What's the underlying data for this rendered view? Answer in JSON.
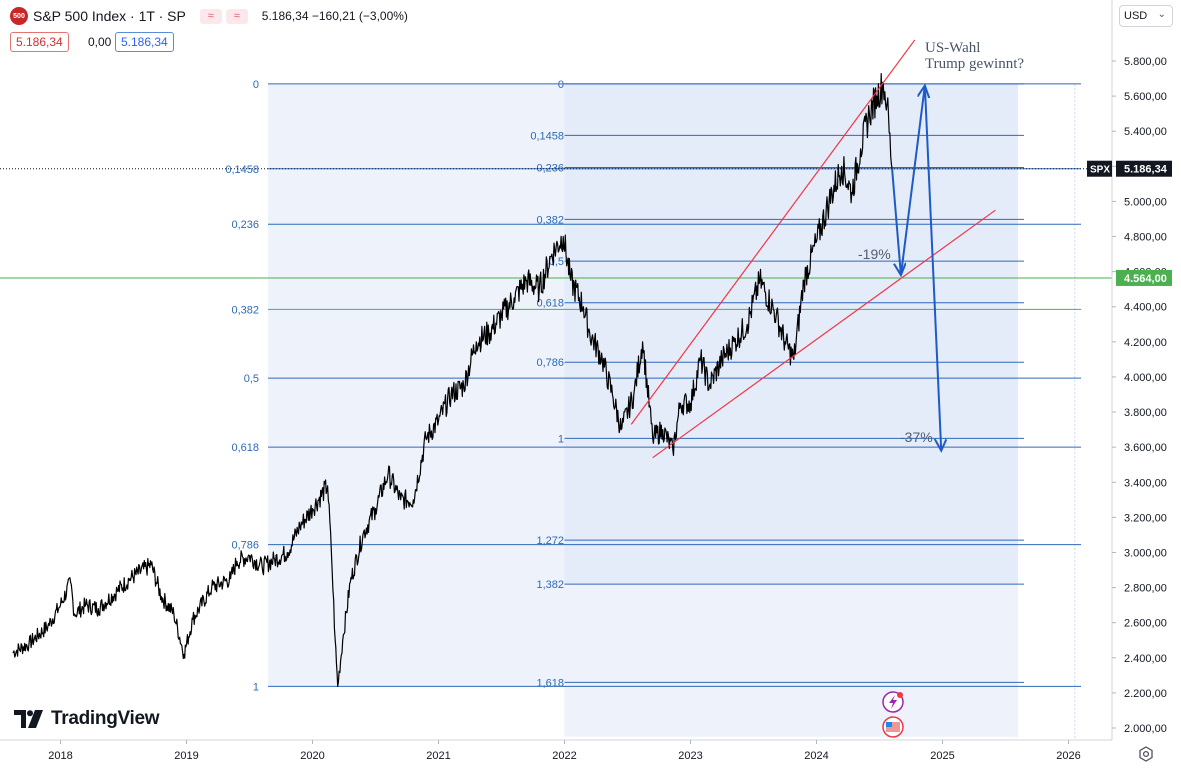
{
  "header": {
    "logo_text": "500",
    "title": "S&P 500 Index · 1T · SP",
    "btn_compare": "≈",
    "btn_compare_2": "≈",
    "ohlc": "5.186,34  −160,21 (−3,00%)",
    "sell_price": "5.186,34",
    "spread": "0,00",
    "buy_price": "5.186,34"
  },
  "currency": "USD",
  "brand": "TradingView",
  "colors": {
    "price_line": "#000000",
    "fib_line": "#2f6ab7",
    "fib_green_line": "#4caf50",
    "fib_label": "#2f6ab7",
    "channel": "#f23645",
    "arrow": "#1e5bc6",
    "current_price_tag": "#131722",
    "green_tag": "#4caf50"
  },
  "chart_data": {
    "type": "line",
    "title": "S&P 500 Index",
    "x_ticks": [
      "2018",
      "2019",
      "2020",
      "2021",
      "2022",
      "2023",
      "2024",
      "2025",
      "2026"
    ],
    "y_ticks": [
      "5.800,00",
      "5.600,00",
      "5.400,00",
      "5.200,00",
      "5.000,00",
      "4.800,00",
      "4.600,00",
      "4.400,00",
      "4.200,00",
      "4.000,00",
      "3.800,00",
      "3.600,00",
      "3.400,00",
      "3.200,00",
      "3.000,00",
      "2.800,00",
      "2.600,00",
      "2.400,00",
      "2.200,00",
      "2.000,00"
    ],
    "ylim": [
      1900,
      6000
    ],
    "xlim": [
      2017.6,
      2026.3
    ],
    "grid": false,
    "series": [
      {
        "x": [
          2017.62,
          2017.75,
          2017.9,
          2018.0,
          2018.08,
          2018.11,
          2018.2,
          2018.3,
          2018.45,
          2018.55,
          2018.72,
          2018.8,
          2018.9,
          2018.98,
          2019.05,
          2019.2,
          2019.35,
          2019.4,
          2019.5,
          2019.6,
          2019.7,
          2019.8,
          2019.9,
          2020.0,
          2020.12,
          2020.15,
          2020.18,
          2020.2,
          2020.24,
          2020.3,
          2020.4,
          2020.5,
          2020.6,
          2020.7,
          2020.8,
          2020.9,
          2021.0,
          2021.1,
          2021.2,
          2021.3,
          2021.4,
          2021.5,
          2021.6,
          2021.7,
          2021.8,
          2021.9,
          2021.99,
          2022.05,
          2022.15,
          2022.2,
          2022.3,
          2022.38,
          2022.45,
          2022.55,
          2022.62,
          2022.7,
          2022.78,
          2022.86,
          2022.92,
          2023.0,
          2023.08,
          2023.15,
          2023.25,
          2023.35,
          2023.45,
          2023.55,
          2023.68,
          2023.75,
          2023.82,
          2023.9,
          2024.0,
          2024.1,
          2024.2,
          2024.28,
          2024.35,
          2024.42,
          2024.48,
          2024.53,
          2024.56,
          2024.6
        ],
        "y": [
          2430,
          2480,
          2580,
          2700,
          2830,
          2650,
          2700,
          2680,
          2780,
          2850,
          2930,
          2750,
          2650,
          2420,
          2620,
          2800,
          2850,
          2950,
          2980,
          2920,
          2960,
          3000,
          3150,
          3250,
          3380,
          3000,
          2500,
          2237,
          2500,
          2830,
          3100,
          3250,
          3450,
          3300,
          3300,
          3650,
          3750,
          3900,
          3950,
          4200,
          4250,
          4350,
          4450,
          4550,
          4500,
          4700,
          4800,
          4550,
          4400,
          4250,
          4100,
          3900,
          3700,
          3900,
          4200,
          3650,
          3700,
          3580,
          3850,
          3850,
          4100,
          3950,
          4100,
          4200,
          4300,
          4550,
          4350,
          4200,
          4100,
          4550,
          4770,
          5000,
          5200,
          5050,
          5300,
          5500,
          5600,
          5670,
          5560,
          5186
        ]
      }
    ],
    "fib_left": {
      "levels": [
        {
          "label": "0",
          "value": 5670
        },
        {
          "label": "0,1458",
          "value": 5186
        },
        {
          "label": "0,236",
          "value": 4870
        },
        {
          "label": "0,382",
          "value": 4385
        },
        {
          "label": "0,5",
          "value": 3993
        },
        {
          "label": "0,618",
          "value": 3600
        },
        {
          "label": "0,786",
          "value": 3045
        },
        {
          "label": "1",
          "value": 2237
        }
      ]
    },
    "fib_right": {
      "levels": [
        {
          "label": "0",
          "value": 5670
        },
        {
          "label": "0,1458",
          "value": 5376
        },
        {
          "label": "0,236",
          "value": 5193
        },
        {
          "label": "0,382",
          "value": 4898
        },
        {
          "label": "0,5",
          "value": 4660
        },
        {
          "label": "0,618",
          "value": 4423
        },
        {
          "label": "0,786",
          "value": 4084
        },
        {
          "label": "1",
          "value": 3650
        },
        {
          "label": "1,272",
          "value": 3070
        },
        {
          "label": "1,382",
          "value": 2820
        },
        {
          "label": "1,618",
          "value": 2260
        }
      ]
    },
    "current_price": {
      "label": "SPX",
      "value": "5.186,34",
      "y": 5186.34
    },
    "horizontal_line": {
      "value": "4.564,00",
      "y": 4564
    },
    "channel": [
      {
        "x1": 2022.53,
        "y1": 3730,
        "x2": 2024.78,
        "y2": 5920
      },
      {
        "x1": 2022.7,
        "y1": 3540,
        "x2": 2025.42,
        "y2": 4950
      }
    ],
    "projections": [
      {
        "points": [
          [
            2024.6,
            5186
          ],
          [
            2024.67,
            4580
          ]
        ],
        "label": "-19%"
      },
      {
        "points": [
          [
            2024.67,
            4580
          ],
          [
            2024.86,
            5660
          ]
        ]
      },
      {
        "points": [
          [
            2024.86,
            5660
          ],
          [
            2024.99,
            3580
          ]
        ],
        "label": "-37%"
      }
    ],
    "annotation": {
      "line1": "US-Wahl",
      "line2": "Trump gewinnt?"
    }
  }
}
